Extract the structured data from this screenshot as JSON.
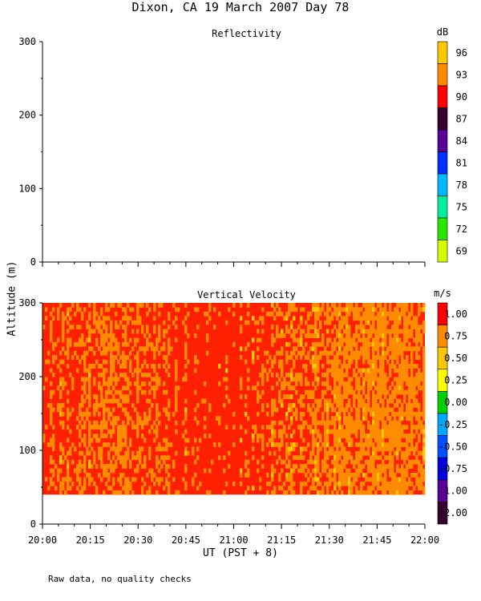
{
  "title": "Dixon, CA 19 March 2007  Day  78",
  "ylabel": "Altitude (m)",
  "xlabel": "UT  (PST + 8)",
  "footnote": "Raw data, no quality checks",
  "chart_data": [
    {
      "type": "heatmap",
      "title": "Reflectivity",
      "x_ticks": [
        "20:00",
        "20:15",
        "20:30",
        "20:45",
        "21:00",
        "21:15",
        "21:30",
        "21:45",
        "22:00"
      ],
      "y_ticks": [
        0,
        100,
        200,
        300
      ],
      "ylim": [
        0,
        300
      ],
      "data": "empty",
      "colorbar": {
        "unit": "dB",
        "labels": [
          "96",
          "93",
          "90",
          "87",
          "84",
          "81",
          "78",
          "75",
          "72",
          "69"
        ],
        "colors": [
          "#ffc800",
          "#ff8c00",
          "#ff0000",
          "#380030",
          "#580098",
          "#0030ff",
          "#00b8ff",
          "#00f0a0",
          "#28e800",
          "#d8ff00"
        ]
      }
    },
    {
      "type": "heatmap",
      "title": "Vertical Velocity",
      "x_ticks": [
        "20:00",
        "20:15",
        "20:30",
        "20:45",
        "21:00",
        "21:15",
        "21:30",
        "21:45",
        "22:00"
      ],
      "y_ticks": [
        0,
        100,
        200,
        300
      ],
      "ylim": [
        0,
        300
      ],
      "data_altitude_range": [
        40,
        300
      ],
      "dominant_values_m_s": [
        1.0,
        0.75,
        0.5
      ],
      "colorbar": {
        "unit": "m/s",
        "labels": [
          "1.00",
          "0.75",
          "0.50",
          "0.25",
          "0.00",
          "-0.25",
          "-0.50",
          "-0.75",
          "-1.00",
          "-2.00"
        ],
        "colors": [
          "#ff0000",
          "#ff8c00",
          "#ffc800",
          "#ffff00",
          "#00d000",
          "#00a8ff",
          "#0050ff",
          "#0000e0",
          "#5a0098",
          "#380030"
        ]
      }
    }
  ]
}
